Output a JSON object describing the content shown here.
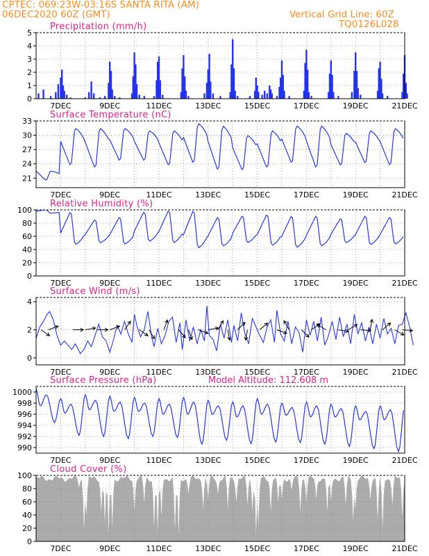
{
  "header": {
    "line1": "CPTEC:   069:23W-03:16S   SANTA RITA (AM)",
    "line2": "06DEC2020 60Z (GMT)",
    "grid_note": "Vertical Grid Line: 60Z",
    "run_code": "TQ0126L028"
  },
  "colors": {
    "header_text": "#ff8c1a",
    "panel_title": "#e0208a",
    "series_blue": "#2433ee",
    "cloud_gray": "#ababab",
    "wind_arrow": "#000000"
  },
  "chart_data": [
    {
      "id": "precip",
      "type": "bar",
      "title": "Precipitation (mm/h)",
      "ylim": [
        0,
        5
      ],
      "yticks": [
        0,
        1,
        2,
        3,
        4,
        5
      ],
      "x_range_days": [
        6.0,
        21.0
      ],
      "x_ticks": [
        "7DEC",
        "9DEC",
        "11DEC",
        "13DEC",
        "15DEC",
        "17DEC",
        "19DEC",
        "21DEC"
      ],
      "note": "bar values in mm/h at each model hour: [day offset from 06DEC 00Z, value]",
      "values": [
        [
          0.1,
          0.4
        ],
        [
          0.3,
          0.7
        ],
        [
          0.6,
          0.2
        ],
        [
          0.8,
          0.5
        ],
        [
          0.9,
          1.1
        ],
        [
          1.0,
          1.6
        ],
        [
          1.05,
          2.2
        ],
        [
          1.1,
          1.0
        ],
        [
          1.15,
          0.6
        ],
        [
          1.25,
          0.3
        ],
        [
          1.4,
          0.1
        ],
        [
          2.0,
          0.1
        ],
        [
          2.15,
          0.5
        ],
        [
          2.25,
          1.3
        ],
        [
          2.35,
          0.4
        ],
        [
          2.6,
          0.1
        ],
        [
          2.8,
          0.2
        ],
        [
          2.95,
          1.2
        ],
        [
          3.0,
          2.8
        ],
        [
          3.05,
          2.1
        ],
        [
          3.1,
          0.7
        ],
        [
          3.2,
          0.2
        ],
        [
          3.4,
          0.1
        ],
        [
          3.9,
          0.4
        ],
        [
          3.95,
          1.7
        ],
        [
          4.0,
          3.5
        ],
        [
          4.05,
          2.6
        ],
        [
          4.1,
          1.1
        ],
        [
          4.2,
          0.3
        ],
        [
          4.4,
          0.2
        ],
        [
          4.8,
          0.2
        ],
        [
          4.9,
          1.4
        ],
        [
          4.95,
          2.8
        ],
        [
          5.0,
          3.2
        ],
        [
          5.05,
          1.4
        ],
        [
          5.15,
          0.3
        ],
        [
          5.9,
          0.5
        ],
        [
          5.95,
          2.3
        ],
        [
          6.0,
          3.3
        ],
        [
          6.05,
          1.7
        ],
        [
          6.1,
          0.6
        ],
        [
          6.2,
          0.2
        ],
        [
          6.85,
          0.4
        ],
        [
          6.95,
          1.2
        ],
        [
          7.0,
          2.2
        ],
        [
          7.05,
          3.4
        ],
        [
          7.1,
          1.3
        ],
        [
          7.2,
          0.4
        ],
        [
          7.5,
          0.2
        ],
        [
          7.9,
          0.5
        ],
        [
          7.95,
          2.6
        ],
        [
          8.0,
          4.5
        ],
        [
          8.05,
          2.3
        ],
        [
          8.1,
          0.6
        ],
        [
          8.2,
          0.2
        ],
        [
          8.7,
          0.2
        ],
        [
          8.9,
          0.6
        ],
        [
          8.95,
          1.6
        ],
        [
          9.0,
          1.0
        ],
        [
          9.05,
          0.5
        ],
        [
          9.2,
          0.3
        ],
        [
          9.3,
          0.6
        ],
        [
          9.4,
          0.4
        ],
        [
          9.5,
          1.0
        ],
        [
          9.55,
          0.7
        ],
        [
          9.6,
          0.4
        ],
        [
          9.8,
          0.2
        ],
        [
          9.9,
          0.9
        ],
        [
          9.95,
          1.6
        ],
        [
          10.0,
          2.9
        ],
        [
          10.05,
          1.8
        ],
        [
          10.1,
          0.6
        ],
        [
          10.3,
          0.2
        ],
        [
          10.9,
          0.6
        ],
        [
          10.95,
          2.7
        ],
        [
          11.0,
          3.7
        ],
        [
          11.05,
          2.2
        ],
        [
          11.1,
          0.5
        ],
        [
          11.2,
          0.2
        ],
        [
          11.9,
          0.5
        ],
        [
          11.95,
          1.9
        ],
        [
          12.0,
          2.9
        ],
        [
          12.05,
          1.8
        ],
        [
          12.1,
          0.5
        ],
        [
          12.3,
          0.2
        ],
        [
          12.85,
          0.5
        ],
        [
          12.95,
          2.1
        ],
        [
          13.0,
          3.5
        ],
        [
          13.05,
          2.1
        ],
        [
          13.1,
          0.8
        ],
        [
          13.2,
          0.3
        ],
        [
          13.9,
          0.6
        ],
        [
          13.95,
          2.3
        ],
        [
          14.0,
          2.8
        ],
        [
          14.05,
          1.5
        ],
        [
          14.1,
          0.4
        ],
        [
          14.3,
          0.2
        ],
        [
          14.9,
          0.5
        ],
        [
          14.95,
          1.9
        ],
        [
          15.0,
          3.3
        ],
        [
          15.05,
          1.2
        ],
        [
          15.1,
          0.4
        ]
      ]
    },
    {
      "id": "temp",
      "type": "line",
      "title": "Surface Temperature (nC)",
      "ylim": [
        19,
        33
      ],
      "yticks": [
        21,
        24,
        27,
        30,
        33
      ],
      "x_range_days": [
        6.0,
        21.0
      ],
      "x_ticks": [
        "7DEC",
        "9DEC",
        "11DEC",
        "13DEC",
        "15DEC",
        "17DEC",
        "19DEC",
        "21DEC"
      ],
      "note": "daily cycle reconstructed from the plot: per-day minimum (near 10Z) and maximum (near 19Z), in degC",
      "series": [
        {
          "mins": [
            20.5,
            23.5,
            23.0,
            24.5,
            24.5,
            23.5,
            24.0,
            22.5,
            22.5,
            23.0,
            24.0,
            23.0,
            23.5,
            24.0,
            23.5
          ],
          "maxs": [
            22.5,
            31.5,
            31.5,
            31.5,
            31.0,
            31.0,
            32.5,
            32.0,
            30.0,
            31.0,
            32.0,
            32.0,
            30.5,
            31.0,
            31.5
          ]
        }
      ]
    },
    {
      "id": "rh",
      "type": "line",
      "title": "Relative Humidity (%)",
      "ylim": [
        0,
        100
      ],
      "yticks": [
        0,
        20,
        40,
        60,
        80,
        100
      ],
      "x_range_days": [
        6.0,
        21.0
      ],
      "x_ticks": [
        "7DEC",
        "9DEC",
        "11DEC",
        "13DEC",
        "15DEC",
        "17DEC",
        "19DEC",
        "21DEC"
      ],
      "series": [
        {
          "mins": [
            95,
            47,
            50,
            48,
            52,
            50,
            42,
            45,
            50,
            46,
            43,
            45,
            50,
            47,
            48
          ],
          "maxs": [
            100,
            98,
            86,
            90,
            98,
            100,
            100,
            90,
            92,
            94,
            92,
            92,
            88,
            92,
            90
          ]
        }
      ]
    },
    {
      "id": "wind",
      "type": "line",
      "title": "Surface Wind (m/s)",
      "ylim": [
        -0.5,
        4.3
      ],
      "yticks": [
        0,
        2,
        4
      ],
      "x_range_days": [
        6.0,
        21.0
      ],
      "x_ticks": [
        "7DEC",
        "9DEC",
        "11DEC",
        "13DEC",
        "15DEC",
        "17DEC",
        "19DEC",
        "21DEC"
      ],
      "note": "wind speed values [day offset, m/s]; arrows are direction vectors drawn along the 2 m/s line",
      "values": [
        [
          0.0,
          1.4
        ],
        [
          0.15,
          2.2
        ],
        [
          0.3,
          2.6
        ],
        [
          0.45,
          3.1
        ],
        [
          0.55,
          3.3
        ],
        [
          0.7,
          2.7
        ],
        [
          0.85,
          1.6
        ],
        [
          1.0,
          0.9
        ],
        [
          1.15,
          1.2
        ],
        [
          1.3,
          0.9
        ],
        [
          1.45,
          0.6
        ],
        [
          1.6,
          1.0
        ],
        [
          1.8,
          0.3
        ],
        [
          1.95,
          0.6
        ],
        [
          2.1,
          1.2
        ],
        [
          2.25,
          0.8
        ],
        [
          2.4,
          1.6
        ],
        [
          2.55,
          2.4
        ],
        [
          2.7,
          1.5
        ],
        [
          2.85,
          1.2
        ],
        [
          3.0,
          0.4
        ],
        [
          3.15,
          1.3
        ],
        [
          3.3,
          2.3
        ],
        [
          3.45,
          1.7
        ],
        [
          3.6,
          2.6
        ],
        [
          3.75,
          1.7
        ],
        [
          3.9,
          1.1
        ],
        [
          4.0,
          3.1
        ],
        [
          4.1,
          2.3
        ],
        [
          4.25,
          1.5
        ],
        [
          4.4,
          2.0
        ],
        [
          4.55,
          3.3
        ],
        [
          4.7,
          1.5
        ],
        [
          4.8,
          0.8
        ],
        [
          4.95,
          2.1
        ],
        [
          5.1,
          1.0
        ],
        [
          5.25,
          1.6
        ],
        [
          5.4,
          2.6
        ],
        [
          5.55,
          2.9
        ],
        [
          5.7,
          1.1
        ],
        [
          5.85,
          2.5
        ],
        [
          5.95,
          0.6
        ],
        [
          6.1,
          2.7
        ],
        [
          6.25,
          1.2
        ],
        [
          6.4,
          2.2
        ],
        [
          6.55,
          1.0
        ],
        [
          6.7,
          2.0
        ],
        [
          6.85,
          1.2
        ],
        [
          6.95,
          3.7
        ],
        [
          7.05,
          1.6
        ],
        [
          7.2,
          1.3
        ],
        [
          7.35,
          0.5
        ],
        [
          7.5,
          2.4
        ],
        [
          7.65,
          1.4
        ],
        [
          7.8,
          2.7
        ],
        [
          7.95,
          1.1
        ],
        [
          8.05,
          2.3
        ],
        [
          8.2,
          1.2
        ],
        [
          8.35,
          3.2
        ],
        [
          8.5,
          1.7
        ],
        [
          8.65,
          1.0
        ],
        [
          8.8,
          2.8
        ],
        [
          8.95,
          2.2
        ],
        [
          9.1,
          1.6
        ],
        [
          9.25,
          1.1
        ],
        [
          9.4,
          2.2
        ],
        [
          9.55,
          2.7
        ],
        [
          9.7,
          1.1
        ],
        [
          9.8,
          3.4
        ],
        [
          9.95,
          1.7
        ],
        [
          10.1,
          1.2
        ],
        [
          10.25,
          2.6
        ],
        [
          10.4,
          1.0
        ],
        [
          10.55,
          2.2
        ],
        [
          10.7,
          1.8
        ],
        [
          10.85,
          0.4
        ],
        [
          11.0,
          2.7
        ],
        [
          11.15,
          1.6
        ],
        [
          11.3,
          2.6
        ],
        [
          11.45,
          1.2
        ],
        [
          11.6,
          2.9
        ],
        [
          11.75,
          0.9
        ],
        [
          11.9,
          1.6
        ],
        [
          12.05,
          2.6
        ],
        [
          12.2,
          1.3
        ],
        [
          12.35,
          2.9
        ],
        [
          12.5,
          1.5
        ],
        [
          12.65,
          2.4
        ],
        [
          12.8,
          1.0
        ],
        [
          12.95,
          3.1
        ],
        [
          13.1,
          1.7
        ],
        [
          13.25,
          2.5
        ],
        [
          13.4,
          1.2
        ],
        [
          13.55,
          2.2
        ],
        [
          13.7,
          1.0
        ],
        [
          13.85,
          2.4
        ],
        [
          14.0,
          1.4
        ],
        [
          14.15,
          2.8
        ],
        [
          14.3,
          1.7
        ],
        [
          14.45,
          2.1
        ],
        [
          14.6,
          1.0
        ],
        [
          14.75,
          2.3
        ],
        [
          14.9,
          2.4
        ],
        [
          15.05,
          3.2
        ],
        [
          15.2,
          2.2
        ],
        [
          15.35,
          0.9
        ]
      ]
    },
    {
      "id": "pressure",
      "type": "line",
      "title": "Surface Pressure (hPa)",
      "subtitle": "Model Altitude: 112.608 m",
      "ylim": [
        989,
        1001
      ],
      "yticks": [
        990,
        992,
        994,
        996,
        998,
        1000
      ],
      "x_range_days": [
        6.0,
        21.0
      ],
      "x_ticks": [
        "7DEC",
        "9DEC",
        "11DEC",
        "13DEC",
        "15DEC",
        "17DEC",
        "19DEC",
        "21DEC"
      ],
      "note": "semidiurnal tide reconstructed from the plot: per-day pressure extremes in hPa",
      "series": [
        {
          "max1": [
            1000.5,
            998.8,
            999.5,
            999.2,
            999.0,
            998.8,
            999.0,
            998.5,
            998.2,
            998.8,
            998.0,
            998.2,
            997.8,
            997.5,
            997.5
          ],
          "min1": [
            997.5,
            996.2,
            996.8,
            996.5,
            996.5,
            996.0,
            996.0,
            996.0,
            995.5,
            996.0,
            995.8,
            995.5,
            995.5,
            995.0,
            995.0
          ],
          "max2": [
            999.5,
            997.8,
            998.5,
            998.2,
            998.0,
            997.8,
            998.2,
            997.5,
            997.5,
            997.8,
            997.2,
            997.5,
            997.0,
            996.5,
            996.8
          ],
          "min2": [
            994.5,
            992.2,
            992.0,
            991.6,
            992.0,
            991.8,
            990.6,
            991.3,
            990.7,
            991.0,
            990.9,
            990.6,
            990.2,
            989.8,
            989.3
          ]
        }
      ]
    },
    {
      "id": "cloud",
      "type": "area",
      "title": "Cloud Cover (%)",
      "ylim": [
        0,
        100
      ],
      "yticks": [
        0,
        20,
        40,
        60,
        80,
        100
      ],
      "x_range_days": [
        6.0,
        21.0
      ],
      "x_ticks": [
        "7DEC",
        "9DEC",
        "11DEC",
        "13DEC",
        "15DEC",
        "17DEC",
        "19DEC",
        "21DEC"
      ],
      "note": "cloud cover % mostly 88-99 with dips; dips listed as [day offset, value]",
      "base_level": 95,
      "dips": [
        [
          1.75,
          80
        ],
        [
          1.95,
          10
        ],
        [
          2.05,
          35
        ],
        [
          2.65,
          40
        ],
        [
          2.8,
          20
        ],
        [
          2.95,
          2
        ],
        [
          3.1,
          15
        ],
        [
          4.0,
          40
        ],
        [
          4.4,
          55
        ],
        [
          4.8,
          12
        ],
        [
          4.95,
          5
        ],
        [
          5.1,
          30
        ],
        [
          5.65,
          8
        ],
        [
          5.8,
          2
        ],
        [
          6.2,
          70
        ],
        [
          6.8,
          45
        ],
        [
          7.0,
          60
        ],
        [
          7.4,
          70
        ],
        [
          7.8,
          45
        ],
        [
          8.15,
          55
        ],
        [
          8.6,
          50
        ],
        [
          8.8,
          40
        ],
        [
          8.95,
          3
        ],
        [
          9.05,
          20
        ],
        [
          9.55,
          40
        ],
        [
          9.85,
          55
        ],
        [
          10.0,
          60
        ],
        [
          10.4,
          75
        ],
        [
          10.75,
          40
        ],
        [
          11.0,
          55
        ],
        [
          11.4,
          60
        ],
        [
          11.85,
          40
        ],
        [
          12.0,
          55
        ],
        [
          12.6,
          50
        ],
        [
          12.9,
          25
        ],
        [
          13.0,
          45
        ],
        [
          13.6,
          60
        ],
        [
          13.9,
          25
        ],
        [
          14.1,
          10
        ],
        [
          14.5,
          50
        ],
        [
          14.9,
          30
        ]
      ]
    }
  ]
}
